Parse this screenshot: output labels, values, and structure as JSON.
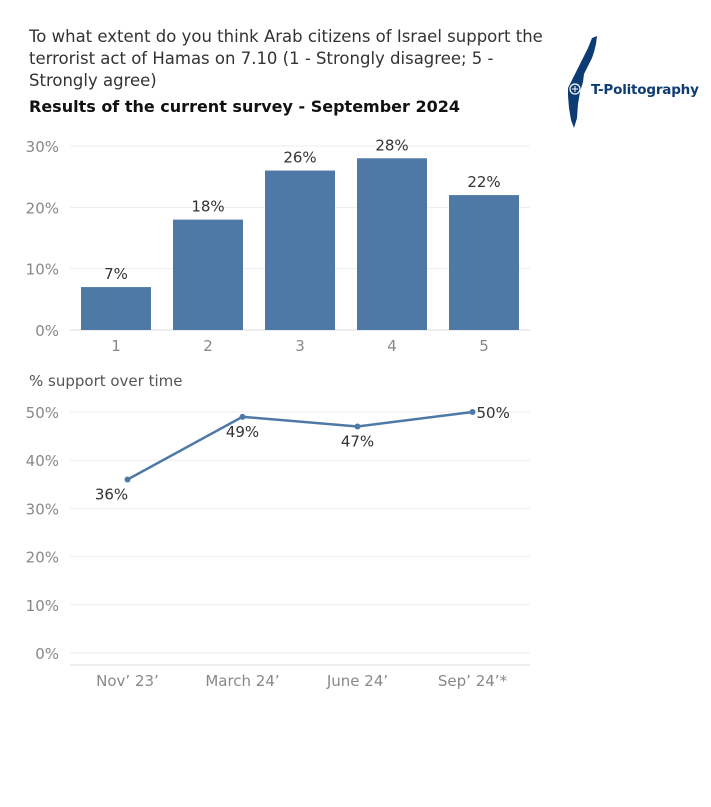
{
  "header": {
    "title": "To what extent do you think Arab citizens of Israel support the terrorist act of Hamas on 7.10 (1 - Strongly disagree; 5 - Strongly agree)",
    "subtitle": "Results of the current survey - September 2024"
  },
  "logo": {
    "text": "T-Politography",
    "color": "#0d3b73"
  },
  "colors": {
    "bar": "#4e79a7",
    "line": "#4e79a7",
    "grid": "#eeeeee",
    "tick": "#888888",
    "label": "#333333"
  },
  "chart_data": [
    {
      "type": "bar",
      "title": "To what extent do you think Arab citizens of Israel support the terrorist act of Hamas on 7.10 (1 - Strongly disagree; 5 - Strongly agree)",
      "subtitle": "Results of the current survey - September 2024",
      "categories": [
        "1",
        "2",
        "3",
        "4",
        "5"
      ],
      "values": [
        7,
        18,
        26,
        28,
        22
      ],
      "data_labels": [
        "7%",
        "18%",
        "26%",
        "28%",
        "22%"
      ],
      "yticks": [
        "0%",
        "10%",
        "20%",
        "30%"
      ],
      "ylim": [
        0,
        30
      ],
      "grid": true
    },
    {
      "type": "line",
      "title": "% support over time",
      "categories": [
        "Nov’ 23’",
        "March 24’",
        "June 24’",
        "Sep’ 24’*"
      ],
      "values": [
        36,
        49,
        47,
        50
      ],
      "data_labels": [
        "36%",
        "49%",
        "47%",
        "50%"
      ],
      "yticks": [
        "0%",
        "10%",
        "20%",
        "30%",
        "40%",
        "50%"
      ],
      "ylim": [
        0,
        50
      ],
      "grid": true
    }
  ]
}
